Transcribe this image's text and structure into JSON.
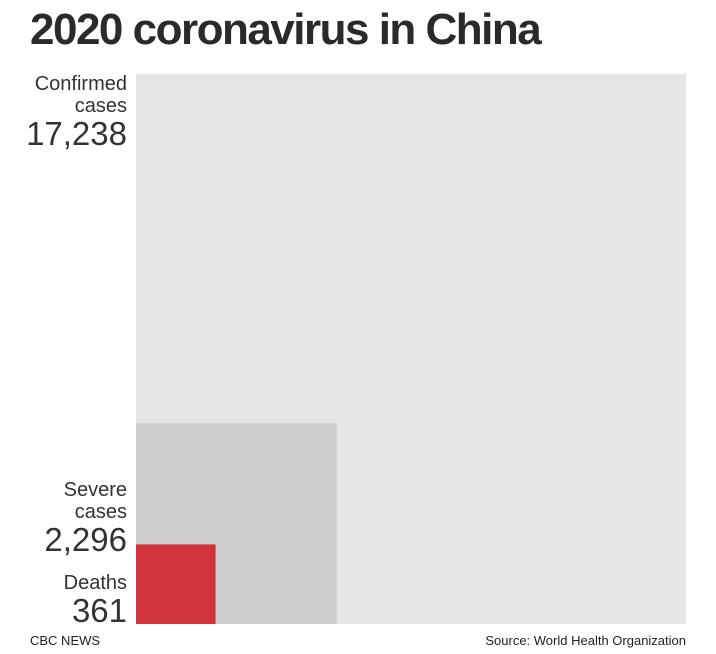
{
  "title": "2020 coronavirus in China",
  "chart_data": {
    "type": "area",
    "title": "2020 coronavirus in China",
    "encoding": "nested squares, area proportional to value",
    "series": [
      {
        "label_line1": "Confirmed",
        "label_line2": "cases",
        "value": 17238,
        "value_text": "17,238",
        "color": "#e4e5e4"
      },
      {
        "label_line1": "Severe",
        "label_line2": "cases",
        "value": 2296,
        "value_text": "2,296",
        "color": "#cececf"
      },
      {
        "label_line1": "Deaths",
        "label_line2": "",
        "value": 361,
        "value_text": "361",
        "color": "#d1343b"
      }
    ]
  },
  "footer": {
    "credit": "CBC NEWS",
    "source": "Source: World Health Organization"
  }
}
